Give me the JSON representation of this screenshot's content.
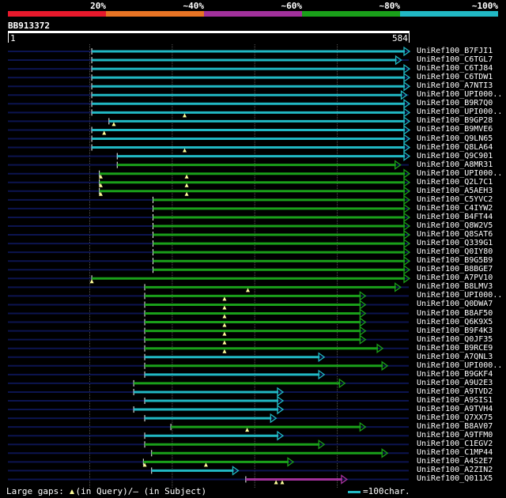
{
  "query": {
    "id": "BB913372",
    "start": "1",
    "end": "584",
    "length": 584
  },
  "scale": {
    "labels": [
      "20%",
      "~40%",
      "~60%",
      "~80%",
      "~100%"
    ],
    "colors": [
      "#e8192c",
      "#e87424",
      "#a2319c",
      "#1aa01a",
      "#21b8c4"
    ]
  },
  "legend": {
    "prefix": "Large gaps:",
    "query_part": "(in Query)/",
    "dash": "—",
    "subject_part": "(in Subject)",
    "unit": "=100char."
  },
  "colors": {
    "background": "#000000",
    "backbone": "#0c1450",
    "cyan": "#21b8c4",
    "green": "#1aa01a",
    "purple": "#a2319c",
    "gap_marker": "#ffff99",
    "grid": "#555555"
  },
  "grid_positions": [
    120,
    240,
    360,
    480
  ],
  "hits": [
    {
      "label": "UniRef100_B7FJI1",
      "color": "cyan",
      "start": 123,
      "end": 584,
      "gaps": []
    },
    {
      "label": "UniRef100_C6TGL7",
      "color": "cyan",
      "start": 123,
      "end": 572,
      "gaps": []
    },
    {
      "label": "UniRef100_C6TJ84",
      "color": "cyan",
      "start": 123,
      "end": 584,
      "gaps": []
    },
    {
      "label": "UniRef100_C6TDW1",
      "color": "cyan",
      "start": 123,
      "end": 584,
      "gaps": []
    },
    {
      "label": "UniRef100_A7NTI3",
      "color": "cyan",
      "start": 123,
      "end": 584,
      "gaps": []
    },
    {
      "label": "UniRef100_UPI000..",
      "color": "cyan",
      "start": 123,
      "end": 580,
      "gaps": []
    },
    {
      "label": "UniRef100_B9R7Q0",
      "color": "cyan",
      "start": 123,
      "end": 584,
      "gaps": []
    },
    {
      "label": "UniRef100_UPI000..",
      "color": "cyan",
      "start": 123,
      "end": 584,
      "gaps": [
        258
      ]
    },
    {
      "label": "UniRef100_B9GP28",
      "color": "cyan",
      "start": 148,
      "end": 584,
      "gaps": [
        155
      ]
    },
    {
      "label": "UniRef100_B9MVE6",
      "color": "cyan",
      "start": 123,
      "end": 584,
      "gaps": [
        141
      ]
    },
    {
      "label": "UniRef100_Q9LN65",
      "color": "cyan",
      "start": 123,
      "end": 584,
      "gaps": []
    },
    {
      "label": "UniRef100_Q8LA64",
      "color": "cyan",
      "start": 123,
      "end": 584,
      "gaps": [
        258
      ]
    },
    {
      "label": "UniRef100_Q9C901",
      "color": "cyan",
      "start": 160,
      "end": 584,
      "gaps": []
    },
    {
      "label": "UniRef100_A8MR31",
      "color": "green",
      "start": 160,
      "end": 571,
      "gaps": []
    },
    {
      "label": "UniRef100_UPI000..",
      "color": "green",
      "start": 134,
      "end": 584,
      "gaps": [
        136,
        261
      ]
    },
    {
      "label": "UniRef100_Q2L7C1",
      "color": "green",
      "start": 134,
      "end": 584,
      "gaps": [
        136,
        261
      ]
    },
    {
      "label": "UniRef100_A5AEH3",
      "color": "green",
      "start": 134,
      "end": 584,
      "gaps": [
        136,
        261
      ]
    },
    {
      "label": "UniRef100_C5YVC2",
      "color": "green",
      "start": 212,
      "end": 584,
      "gaps": []
    },
    {
      "label": "UniRef100_C4IYW2",
      "color": "green",
      "start": 212,
      "end": 584,
      "gaps": []
    },
    {
      "label": "UniRef100_B4FT44",
      "color": "green",
      "start": 212,
      "end": 584,
      "gaps": []
    },
    {
      "label": "UniRef100_Q8W2V5",
      "color": "green",
      "start": 212,
      "end": 584,
      "gaps": []
    },
    {
      "label": "UniRef100_Q8SAT6",
      "color": "green",
      "start": 212,
      "end": 584,
      "gaps": []
    },
    {
      "label": "UniRef100_Q339G1",
      "color": "green",
      "start": 212,
      "end": 584,
      "gaps": []
    },
    {
      "label": "UniRef100_Q0IY80",
      "color": "green",
      "start": 212,
      "end": 584,
      "gaps": []
    },
    {
      "label": "UniRef100_B9G5B9",
      "color": "green",
      "start": 212,
      "end": 584,
      "gaps": []
    },
    {
      "label": "UniRef100_B8BGE7",
      "color": "green",
      "start": 212,
      "end": 584,
      "gaps": []
    },
    {
      "label": "UniRef100_A7PV10",
      "color": "green",
      "start": 123,
      "end": 584,
      "gaps": [
        123
      ]
    },
    {
      "label": "UniRef100_B8LMV3",
      "color": "green",
      "start": 200,
      "end": 571,
      "gaps": [
        350
      ]
    },
    {
      "label": "UniRef100_UPI000..",
      "color": "green",
      "start": 200,
      "end": 520,
      "gaps": [
        316
      ]
    },
    {
      "label": "UniRef100_Q0DWA7",
      "color": "green",
      "start": 200,
      "end": 520,
      "gaps": [
        316
      ]
    },
    {
      "label": "UniRef100_B8AF50",
      "color": "green",
      "start": 200,
      "end": 520,
      "gaps": [
        316
      ]
    },
    {
      "label": "UniRef100_Q6K9X5",
      "color": "green",
      "start": 200,
      "end": 520,
      "gaps": [
        316
      ]
    },
    {
      "label": "UniRef100_B9F4K3",
      "color": "green",
      "start": 200,
      "end": 520,
      "gaps": [
        316
      ]
    },
    {
      "label": "UniRef100_Q0JF35",
      "color": "green",
      "start": 200,
      "end": 520,
      "gaps": [
        316
      ]
    },
    {
      "label": "UniRef100_B9RCE9",
      "color": "green",
      "start": 200,
      "end": 545,
      "gaps": [
        316
      ]
    },
    {
      "label": "UniRef100_A7QNL3",
      "color": "cyan",
      "start": 200,
      "end": 460,
      "gaps": []
    },
    {
      "label": "UniRef100_UPI000..",
      "color": "green",
      "start": 200,
      "end": 552,
      "gaps": []
    },
    {
      "label": "UniRef100_B9GKF4",
      "color": "cyan",
      "start": 200,
      "end": 460,
      "gaps": []
    },
    {
      "label": "UniRef100_A9U2E3",
      "color": "green",
      "start": 184,
      "end": 490,
      "gaps": []
    },
    {
      "label": "UniRef100_A9TVD2",
      "color": "cyan",
      "start": 184,
      "end": 400,
      "gaps": []
    },
    {
      "label": "UniRef100_A9SIS1",
      "color": "cyan",
      "start": 200,
      "end": 400,
      "gaps": []
    },
    {
      "label": "UniRef100_A9TVH4",
      "color": "cyan",
      "start": 184,
      "end": 400,
      "gaps": []
    },
    {
      "label": "UniRef100_Q7XX75",
      "color": "cyan",
      "start": 200,
      "end": 390,
      "gaps": []
    },
    {
      "label": "UniRef100_B8AV07",
      "color": "green",
      "start": 238,
      "end": 520,
      "gaps": [
        349
      ]
    },
    {
      "label": "UniRef100_A9TFM0",
      "color": "cyan",
      "start": 200,
      "end": 400,
      "gaps": []
    },
    {
      "label": "UniRef100_C1EGV2",
      "color": "green",
      "start": 200,
      "end": 460,
      "gaps": []
    },
    {
      "label": "UniRef100_C1MP44",
      "color": "green",
      "start": 210,
      "end": 552,
      "gaps": []
    },
    {
      "label": "UniRef100_A4S2E7",
      "color": "green",
      "start": 198,
      "end": 415,
      "gaps": [
        200,
        289
      ]
    },
    {
      "label": "UniRef100_A2ZIN2",
      "color": "cyan",
      "start": 210,
      "end": 335,
      "gaps": []
    },
    {
      "label": "UniRef100_Q011X5",
      "color": "purple",
      "start": 347,
      "end": 493,
      "gaps": [
        391,
        400
      ]
    }
  ]
}
